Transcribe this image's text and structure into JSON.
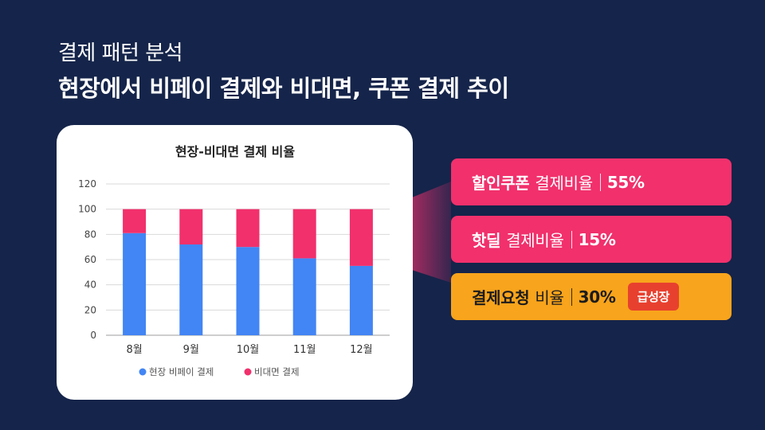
{
  "slide": {
    "subtitle": "결제 패턴 분석",
    "title": "현장에서 비페이 결제와 비대면, 쿠폰 결제 추이"
  },
  "chart_data": {
    "type": "bar",
    "stacked": true,
    "title": "현장-비대면 결제 비율",
    "xlabel": "",
    "ylabel": "",
    "categories": [
      "8월",
      "9월",
      "10월",
      "11월",
      "12월"
    ],
    "series": [
      {
        "name": "현장 비페이 결제",
        "color": "#4285f4",
        "values": [
          81,
          72,
          70,
          61,
          55
        ]
      },
      {
        "name": "비대면 결제",
        "color": "#f1306c",
        "values": [
          19,
          28,
          30,
          39,
          45
        ]
      }
    ],
    "ylim": [
      0,
      120
    ],
    "yticks": [
      0,
      20,
      40,
      60,
      80,
      100,
      120
    ],
    "grid": true,
    "legend_position": "bottom"
  },
  "callouts": [
    {
      "strong": "할인쿠폰",
      "normal": "결제비율",
      "pct": "55%"
    },
    {
      "strong": "핫딜",
      "normal": "결제비율",
      "pct": "15%"
    },
    {
      "strong": "결제요청",
      "normal": "비율",
      "pct": "30%",
      "badge": "급성장"
    }
  ],
  "colors": {
    "background": "#15244a",
    "pink": "#f1306c",
    "orange": "#f8a41c",
    "badge": "#e8402f"
  }
}
